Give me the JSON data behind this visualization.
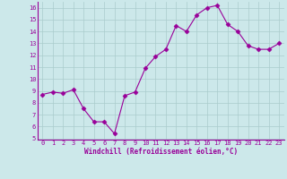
{
  "x": [
    0,
    1,
    2,
    3,
    4,
    5,
    6,
    7,
    8,
    9,
    10,
    11,
    12,
    13,
    14,
    15,
    16,
    17,
    18,
    19,
    20,
    21,
    22,
    23
  ],
  "y": [
    8.7,
    8.9,
    8.8,
    9.1,
    7.5,
    6.4,
    6.4,
    5.4,
    8.6,
    8.9,
    10.9,
    11.9,
    12.5,
    14.5,
    14.0,
    15.4,
    16.0,
    16.2,
    14.6,
    14.0,
    12.8,
    12.5,
    12.5,
    13.0
  ],
  "line_color": "#990099",
  "marker": "D",
  "marker_size": 2.5,
  "marker_linewidth": 0.5,
  "line_width": 0.8,
  "bg_color": "#cce8ea",
  "grid_color": "#aacccc",
  "xlabel": "Windchill (Refroidissement éolien,°C)",
  "xlabel_color": "#990099",
  "tick_color": "#990099",
  "label_fontsize": 5.0,
  "xlabel_fontsize": 5.5,
  "ylim": [
    4.9,
    16.5
  ],
  "yticks": [
    5,
    6,
    7,
    8,
    9,
    10,
    11,
    12,
    13,
    14,
    15,
    16
  ],
  "xlim": [
    -0.5,
    23.5
  ],
  "xticks": [
    0,
    1,
    2,
    3,
    4,
    5,
    6,
    7,
    8,
    9,
    10,
    11,
    12,
    13,
    14,
    15,
    16,
    17,
    18,
    19,
    20,
    21,
    22,
    23
  ]
}
